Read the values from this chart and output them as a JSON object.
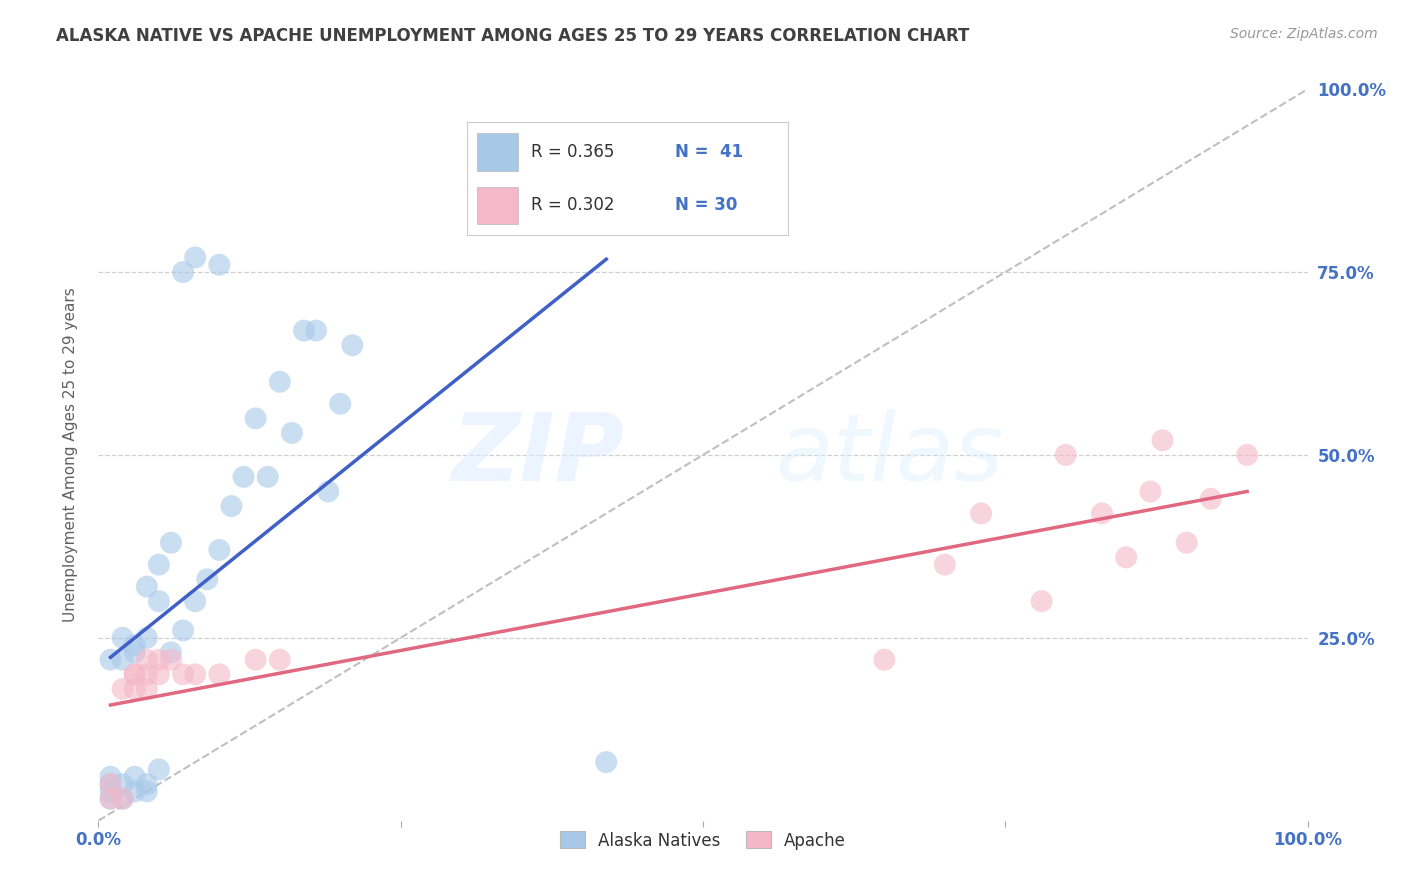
{
  "title": "ALASKA NATIVE VS APACHE UNEMPLOYMENT AMONG AGES 25 TO 29 YEARS CORRELATION CHART",
  "source": "Source: ZipAtlas.com",
  "ylabel": "Unemployment Among Ages 25 to 29 years",
  "legend_label_1": "Alaska Natives",
  "legend_label_2": "Apache",
  "legend_R1": "R = 0.365",
  "legend_N1": "N =  41",
  "legend_R2": "R = 0.302",
  "legend_N2": "N = 30",
  "color_blue": "#a8c8e8",
  "color_pink": "#f4b8c8",
  "color_blue_line": "#4060c8",
  "color_pink_line": "#e06880",
  "color_diag": "#b0b0b0",
  "alaska_x": [
    0.01,
    0.01,
    0.01,
    0.01,
    0.01,
    0.02,
    0.02,
    0.02,
    0.02,
    0.03,
    0.03,
    0.03,
    0.03,
    0.04,
    0.04,
    0.04,
    0.04,
    0.05,
    0.05,
    0.05,
    0.06,
    0.06,
    0.07,
    0.07,
    0.08,
    0.08,
    0.09,
    0.1,
    0.1,
    0.11,
    0.12,
    0.13,
    0.14,
    0.15,
    0.16,
    0.17,
    0.18,
    0.19,
    0.2,
    0.21,
    0.42
  ],
  "alaska_y": [
    0.03,
    0.04,
    0.05,
    0.06,
    0.22,
    0.03,
    0.05,
    0.22,
    0.25,
    0.04,
    0.06,
    0.23,
    0.24,
    0.04,
    0.05,
    0.25,
    0.32,
    0.07,
    0.3,
    0.35,
    0.23,
    0.38,
    0.26,
    0.75,
    0.3,
    0.77,
    0.33,
    0.37,
    0.76,
    0.43,
    0.47,
    0.55,
    0.47,
    0.6,
    0.53,
    0.67,
    0.67,
    0.45,
    0.57,
    0.65,
    0.08
  ],
  "apache_x": [
    0.01,
    0.01,
    0.02,
    0.02,
    0.03,
    0.03,
    0.03,
    0.04,
    0.04,
    0.04,
    0.05,
    0.05,
    0.06,
    0.07,
    0.08,
    0.1,
    0.13,
    0.15,
    0.65,
    0.7,
    0.73,
    0.78,
    0.8,
    0.83,
    0.85,
    0.87,
    0.88,
    0.9,
    0.92,
    0.95
  ],
  "apache_y": [
    0.03,
    0.05,
    0.03,
    0.18,
    0.18,
    0.2,
    0.2,
    0.18,
    0.2,
    0.22,
    0.2,
    0.22,
    0.22,
    0.2,
    0.2,
    0.2,
    0.22,
    0.22,
    0.22,
    0.35,
    0.42,
    0.3,
    0.5,
    0.42,
    0.36,
    0.45,
    0.52,
    0.38,
    0.44,
    0.5
  ],
  "xlim": [
    0,
    1
  ],
  "ylim": [
    0,
    1
  ],
  "xticks": [
    0.0,
    0.25,
    0.5,
    0.75,
    1.0
  ],
  "yticks": [
    0.0,
    0.25,
    0.5,
    0.75,
    1.0
  ],
  "xticklabels_show": {
    "0.0": "0.0%",
    "1.0": "100.0%"
  },
  "yticklabels_right": {
    "0.25": "25.0%",
    "0.5": "50.0%",
    "0.75": "75.0%",
    "1.0": "100.0%"
  },
  "watermark_zip": "ZIP",
  "watermark_atlas": "atlas",
  "background_color": "#ffffff",
  "tick_color": "#4472c4",
  "grid_color": "#d0d0d0",
  "title_color": "#404040",
  "ylabel_color": "#606060"
}
